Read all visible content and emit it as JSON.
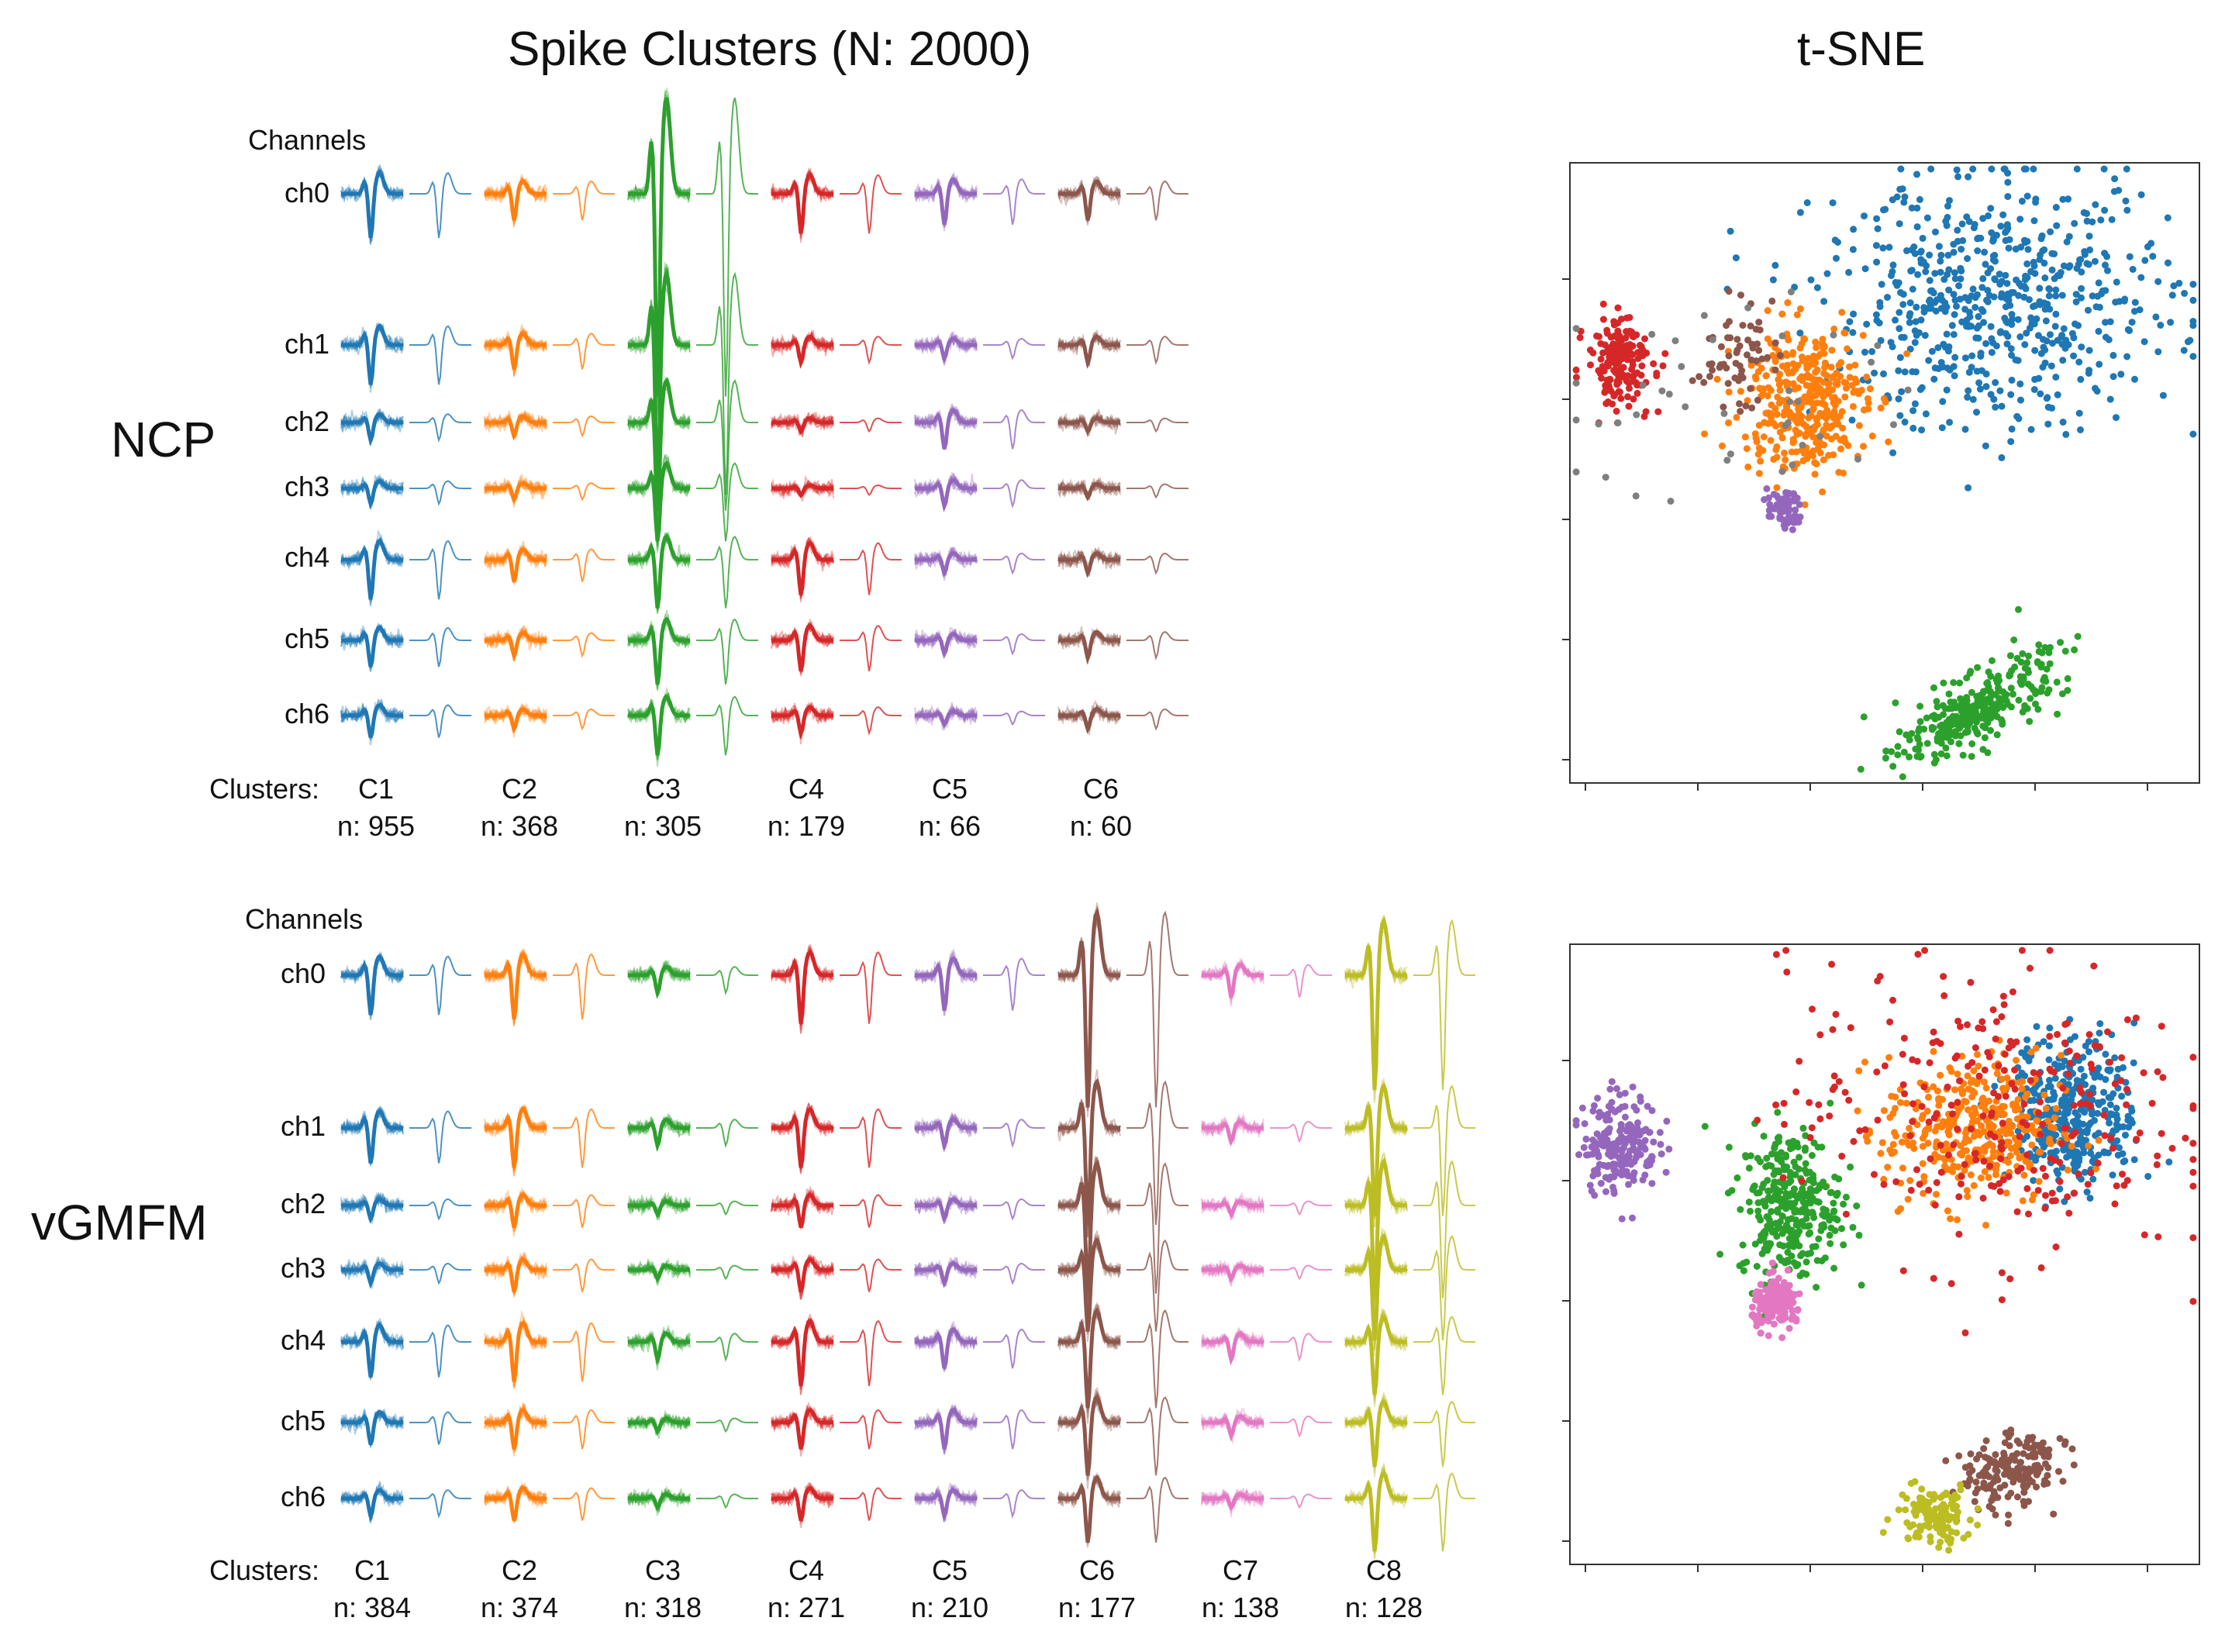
{
  "titles": {
    "left": "Spike Clusters (N: 2000)",
    "right": "t-SNE"
  },
  "labels": {
    "channels": "Channels",
    "clusters": "Clusters:"
  },
  "channels": [
    "ch0",
    "ch1",
    "ch2",
    "ch3",
    "ch4",
    "ch5",
    "ch6"
  ],
  "colors": {
    "blue": "#1f77b4",
    "orange": "#ff7f0e",
    "green": "#2ca02c",
    "red": "#d62728",
    "purple": "#9467bd",
    "brown": "#8c564b",
    "pink": "#e377c2",
    "olive": "#bcbd22",
    "gray": "#7f7f7f"
  },
  "chart_data": [
    {
      "type": "waveform-grid",
      "method": "NCP",
      "clusters": [
        {
          "label": "C1",
          "count": "n: 955",
          "color": "#1f77b4",
          "amp": [
            1.0,
            0.9,
            0.4,
            0.35,
            0.9,
            0.6,
            0.5
          ]
        },
        {
          "label": "C2",
          "count": "n: 368",
          "color": "#ff7f0e",
          "amp": [
            0.6,
            0.55,
            0.3,
            0.25,
            0.5,
            0.35,
            0.3
          ]
        },
        {
          "label": "C3",
          "count": "n: 305",
          "color": "#2ca02c",
          "amp": [
            4.6,
            3.4,
            2.0,
            1.2,
            1.1,
            1.0,
            0.9
          ]
        },
        {
          "label": "C4",
          "count": "n: 179",
          "color": "#d62728",
          "amp": [
            0.9,
            0.4,
            0.2,
            0.15,
            0.8,
            0.7,
            0.4
          ]
        },
        {
          "label": "C5",
          "count": "n: 66",
          "color": "#9467bd",
          "amp": [
            0.7,
            0.3,
            0.6,
            0.4,
            0.3,
            0.3,
            0.2
          ]
        },
        {
          "label": "C6",
          "count": "n: 60",
          "color": "#8c564b",
          "amp": [
            0.6,
            0.4,
            0.2,
            0.2,
            0.3,
            0.4,
            0.3
          ]
        }
      ]
    },
    {
      "type": "waveform-grid",
      "method": "vGMFM",
      "clusters": [
        {
          "label": "C1",
          "count": "n: 384",
          "color": "#1f77b4",
          "amp": [
            0.9,
            0.8,
            0.3,
            0.3,
            0.8,
            0.5,
            0.4
          ]
        },
        {
          "label": "C2",
          "count": "n: 374",
          "color": "#ff7f0e",
          "amp": [
            1.0,
            0.9,
            0.5,
            0.5,
            0.9,
            0.6,
            0.5
          ]
        },
        {
          "label": "C3",
          "count": "n: 318",
          "color": "#2ca02c",
          "amp": [
            0.4,
            0.4,
            0.2,
            0.2,
            0.4,
            0.2,
            0.2
          ]
        },
        {
          "label": "C4",
          "count": "n: 271",
          "color": "#d62728",
          "amp": [
            1.1,
            0.9,
            0.5,
            0.5,
            1.0,
            0.6,
            0.5
          ]
        },
        {
          "label": "C5",
          "count": "n: 210",
          "color": "#9467bd",
          "amp": [
            0.8,
            0.4,
            0.3,
            0.3,
            0.6,
            0.6,
            0.4
          ]
        },
        {
          "label": "C6",
          "count": "n: 177",
          "color": "#8c564b",
          "amp": [
            3.0,
            2.2,
            2.0,
            1.4,
            1.5,
            1.2,
            1.0
          ]
        },
        {
          "label": "C7",
          "count": "n: 138",
          "color": "#e377c2",
          "amp": [
            0.5,
            0.3,
            0.2,
            0.2,
            0.4,
            0.3,
            0.2
          ]
        },
        {
          "label": "C8",
          "count": "n: 128",
          "color": "#bcbd22",
          "amp": [
            2.6,
            2.0,
            2.1,
            1.6,
            1.2,
            1.0,
            1.2
          ]
        }
      ]
    },
    {
      "type": "scatter",
      "method": "NCP",
      "xlabel": "",
      "ylabel": "",
      "xlim": [
        0,
        100
      ],
      "ylim": [
        0,
        100
      ],
      "clusters": [
        {
          "label": "C1",
          "color": "#1f77b4",
          "n": 955,
          "center": [
            68,
            77
          ],
          "spread": [
            14,
            10
          ],
          "rotation": 0
        },
        {
          "label": "C2",
          "color": "#ff7f0e",
          "n": 368,
          "center": [
            37,
            62
          ],
          "spread": [
            5,
            6
          ],
          "rotation": 0
        },
        {
          "label": "C3",
          "color": "#2ca02c",
          "n": 305,
          "center": [
            65,
            12
          ],
          "spread": [
            7,
            2.5
          ],
          "rotation": 30
        },
        {
          "label": "C4",
          "color": "#d62728",
          "n": 179,
          "center": [
            8,
            68
          ],
          "spread": [
            2.6,
            3.6
          ],
          "rotation": 0
        },
        {
          "label": "C5",
          "color": "#9467bd",
          "n": 66,
          "center": [
            34,
            44
          ],
          "spread": [
            1.3,
            1.5
          ],
          "rotation": 0
        },
        {
          "label": "C6",
          "color": "#8c564b",
          "n": 60,
          "center": [
            26,
            69
          ],
          "spread": [
            3,
            4
          ],
          "rotation": 0
        },
        {
          "label": "",
          "color": "#7f7f7f",
          "n": 40,
          "center": [
            24,
            62
          ],
          "spread": [
            14,
            10
          ],
          "rotation": 0
        }
      ]
    },
    {
      "type": "scatter",
      "method": "vGMFM",
      "xlabel": "",
      "ylabel": "",
      "xlim": [
        0,
        100
      ],
      "ylim": [
        0,
        100
      ],
      "clusters": [
        {
          "label": "C1",
          "color": "#1f77b4",
          "n": 384,
          "center": [
            80,
            73
          ],
          "spread": [
            5,
            6
          ],
          "rotation": 0
        },
        {
          "label": "C2",
          "color": "#ff7f0e",
          "n": 374,
          "center": [
            64,
            70
          ],
          "spread": [
            7,
            6
          ],
          "rotation": 0
        },
        {
          "label": "C3",
          "color": "#2ca02c",
          "n": 318,
          "center": [
            35,
            58
          ],
          "spread": [
            4,
            6
          ],
          "rotation": 0
        },
        {
          "label": "C4",
          "color": "#d62728",
          "n": 271,
          "center": [
            66,
            73
          ],
          "spread": [
            16,
            12
          ],
          "rotation": 0
        },
        {
          "label": "C5",
          "color": "#9467bd",
          "n": 210,
          "center": [
            8,
            68
          ],
          "spread": [
            3,
            4
          ],
          "rotation": 0
        },
        {
          "label": "C6",
          "color": "#8c564b",
          "n": 177,
          "center": [
            70,
            15
          ],
          "spread": [
            4,
            3
          ],
          "rotation": 30
        },
        {
          "label": "C7",
          "color": "#e377c2",
          "n": 138,
          "center": [
            33,
            42
          ],
          "spread": [
            2,
            2
          ],
          "rotation": 0
        },
        {
          "label": "C8",
          "color": "#bcbd22",
          "n": 128,
          "center": [
            58,
            8
          ],
          "spread": [
            3,
            2.5
          ],
          "rotation": 0
        }
      ]
    }
  ]
}
